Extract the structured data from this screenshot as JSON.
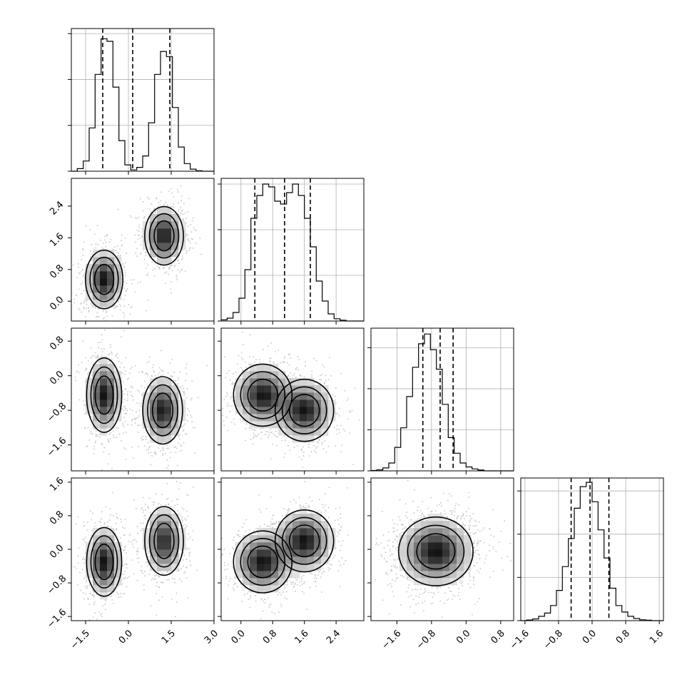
{
  "chart_data": {
    "type": "corner",
    "grid": true,
    "parameters": [
      {
        "id": "p0",
        "range": [
          -2.0,
          3.0
        ],
        "ticks": [
          -1.5,
          0.0,
          1.5,
          3.0
        ],
        "tick_labels": [
          "−1.5",
          "0.0",
          "1.5",
          "3.0"
        ],
        "quantiles": [
          -0.9,
          0.15,
          1.45
        ]
      },
      {
        "id": "p1",
        "range": [
          -0.5,
          3.1
        ],
        "ticks": [
          0.0,
          0.8,
          1.6,
          2.4
        ],
        "tick_labels": [
          "0.0",
          "0.8",
          "1.6",
          "2.4"
        ],
        "quantiles": [
          0.35,
          1.1,
          1.75
        ]
      },
      {
        "id": "p2",
        "range": [
          -2.2,
          1.1
        ],
        "ticks": [
          -1.6,
          -0.8,
          0.0,
          0.8
        ],
        "tick_labels": [
          "−1.6",
          "−0.8",
          "0.0",
          "0.8"
        ],
        "quantiles": [
          -1.0,
          -0.6,
          -0.3
        ]
      },
      {
        "id": "p3",
        "range": [
          -1.7,
          1.7
        ],
        "ticks": [
          -1.6,
          -0.8,
          0.0,
          0.8,
          1.6
        ],
        "tick_labels": [
          "−1.6",
          "−0.8",
          "0.0",
          "0.8",
          "1.6"
        ],
        "quantiles": [
          -0.5,
          -0.05,
          0.4
        ]
      }
    ],
    "histograms": [
      {
        "param": "p0",
        "bins": 24,
        "counts": [
          0,
          10,
          40,
          170,
          380,
          520,
          510,
          330,
          120,
          25,
          5,
          15,
          60,
          190,
          380,
          470,
          450,
          250,
          95,
          30,
          8,
          2,
          0,
          0
        ],
        "ymax": 560,
        "y_ticks": [
          0,
          180,
          360,
          540
        ]
      },
      {
        "param": "p1",
        "bins": 24,
        "counts": [
          4,
          10,
          30,
          80,
          180,
          360,
          440,
          480,
          470,
          420,
          410,
          450,
          480,
          440,
          360,
          260,
          140,
          70,
          25,
          8,
          3,
          0,
          0,
          0
        ],
        "ymax": 500,
        "y_ticks": [
          0,
          160,
          320,
          480
        ]
      },
      {
        "param": "p2",
        "bins": 24,
        "counts": [
          2,
          5,
          15,
          40,
          120,
          220,
          380,
          530,
          650,
          700,
          620,
          520,
          340,
          170,
          90,
          40,
          20,
          10,
          4,
          0,
          0,
          0,
          0,
          0
        ],
        "ymax": 730,
        "y_ticks": [
          0,
          210,
          420,
          630
        ]
      },
      {
        "param": "p3",
        "bins": 24,
        "counts": [
          0,
          3,
          8,
          20,
          35,
          70,
          140,
          250,
          380,
          520,
          620,
          640,
          550,
          420,
          290,
          150,
          70,
          40,
          20,
          10,
          4,
          2,
          0,
          0
        ],
        "ymax": 660,
        "y_ticks": [
          0,
          200,
          400,
          600
        ]
      }
    ],
    "pairs": [
      {
        "x": "p0",
        "y": "p1",
        "components": [
          {
            "mx": -0.85,
            "my": 0.55,
            "sx": 0.32,
            "sy": 0.36,
            "rho": 0.0,
            "weight": 0.5
          },
          {
            "mx": 1.25,
            "my": 1.65,
            "sx": 0.33,
            "sy": 0.36,
            "rho": 0.0,
            "weight": 0.5
          }
        ]
      },
      {
        "x": "p0",
        "y": "p2",
        "components": [
          {
            "mx": -0.85,
            "my": -0.45,
            "sx": 0.3,
            "sy": 0.42,
            "rho": 0.0,
            "weight": 0.5
          },
          {
            "mx": 1.2,
            "my": -0.8,
            "sx": 0.34,
            "sy": 0.38,
            "rho": 0.0,
            "weight": 0.5
          }
        ]
      },
      {
        "x": "p0",
        "y": "p3",
        "components": [
          {
            "mx": -0.85,
            "my": -0.3,
            "sx": 0.3,
            "sy": 0.4,
            "rho": 0.0,
            "weight": 0.5
          },
          {
            "mx": 1.25,
            "my": 0.2,
            "sx": 0.33,
            "sy": 0.4,
            "rho": 0.0,
            "weight": 0.5
          }
        ]
      },
      {
        "x": "p1",
        "y": "p2",
        "components": [
          {
            "mx": 0.55,
            "my": -0.45,
            "sx": 0.36,
            "sy": 0.35,
            "rho": 0.0,
            "weight": 0.5
          },
          {
            "mx": 1.6,
            "my": -0.8,
            "sx": 0.36,
            "sy": 0.35,
            "rho": 0.0,
            "weight": 0.5
          }
        ]
      },
      {
        "x": "p1",
        "y": "p3",
        "components": [
          {
            "mx": 0.55,
            "my": -0.3,
            "sx": 0.36,
            "sy": 0.36,
            "rho": 0.0,
            "weight": 0.5
          },
          {
            "mx": 1.6,
            "my": 0.2,
            "sx": 0.36,
            "sy": 0.36,
            "rho": 0.0,
            "weight": 0.5
          }
        ]
      },
      {
        "x": "p2",
        "y": "p3",
        "components": [
          {
            "mx": -0.7,
            "my": -0.05,
            "sx": 0.42,
            "sy": 0.4,
            "rho": 0.0,
            "weight": 1.0
          }
        ]
      }
    ],
    "contour_levels": [
      0.25,
      0.5,
      0.75
    ],
    "colors": {
      "line": "#000000",
      "grid": "#b0b0b0",
      "points": "#808080",
      "background": "#ffffff"
    }
  }
}
